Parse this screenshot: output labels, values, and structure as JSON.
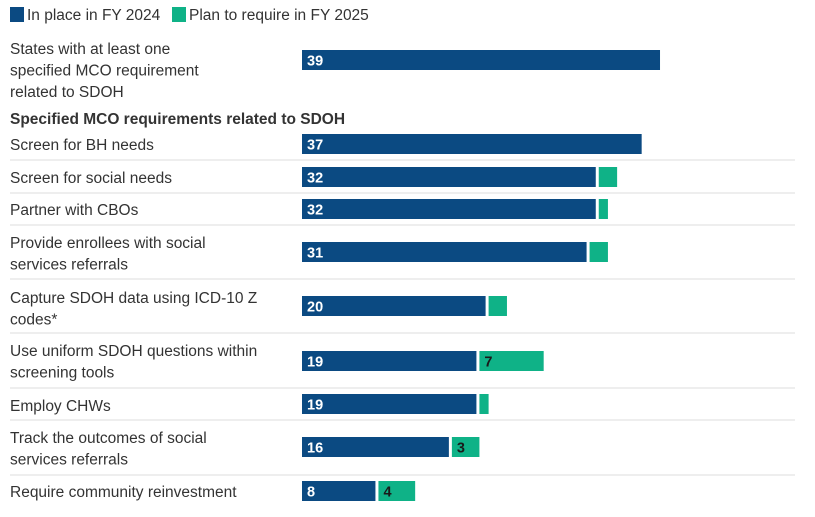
{
  "chart_data": {
    "type": "bar",
    "orientation": "horizontal",
    "stacked": true,
    "legend_position": "top-left",
    "colors": {
      "in_place": "#0b4a82",
      "plan": "#0fb287"
    },
    "series": [
      {
        "name": "In place in FY 2024",
        "key": "in_place"
      },
      {
        "name": "Plan to require in FY 2025",
        "key": "plan"
      }
    ],
    "summary": {
      "label": "States with at least one specified MCO requirement related to SDOH",
      "in_place": 39,
      "plan": 0
    },
    "section_title": "Specified MCO requirements related to SDOH",
    "categories": [
      "Screen for BH needs",
      "Screen for social needs",
      "Partner with CBOs",
      "Provide enrollees with social services referrals",
      "Capture SDOH data using ICD-10 Z codes*",
      "Use uniform SDOH questions within screening tools",
      "Employ CHWs",
      "Track the outcomes of social services referrals",
      "Require community reinvestment"
    ],
    "in_place": [
      37,
      32,
      32,
      31,
      20,
      19,
      19,
      16,
      8
    ],
    "plan": [
      0,
      2,
      1,
      2,
      2,
      7,
      1,
      3,
      4
    ],
    "plan_labels": [
      "",
      "",
      "",
      "",
      "",
      "7",
      "",
      "3",
      "4"
    ]
  }
}
